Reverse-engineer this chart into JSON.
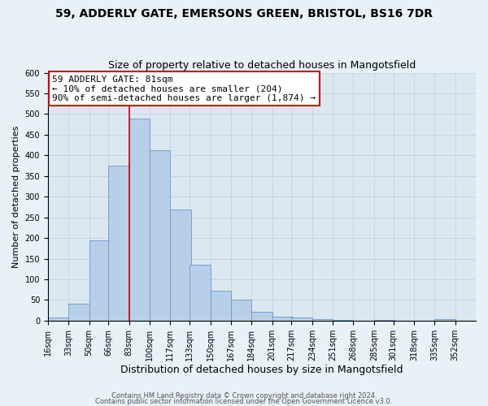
{
  "title1": "59, ADDERLY GATE, EMERSONS GREEN, BRISTOL, BS16 7DR",
  "title2": "Size of property relative to detached houses in Mangotsfield",
  "xlabel": "Distribution of detached houses by size in Mangotsfield",
  "ylabel": "Number of detached properties",
  "footer1": "Contains HM Land Registry data © Crown copyright and database right 2024.",
  "footer2": "Contains public sector information licensed under the Open Government Licence v3.0.",
  "bin_labels": [
    "16sqm",
    "33sqm",
    "50sqm",
    "66sqm",
    "83sqm",
    "100sqm",
    "117sqm",
    "133sqm",
    "150sqm",
    "167sqm",
    "184sqm",
    "201sqm",
    "217sqm",
    "234sqm",
    "251sqm",
    "268sqm",
    "285sqm",
    "301sqm",
    "318sqm",
    "335sqm",
    "352sqm"
  ],
  "bin_edges": [
    16,
    33,
    50,
    66,
    83,
    100,
    117,
    133,
    150,
    167,
    184,
    201,
    217,
    234,
    251,
    268,
    285,
    301,
    318,
    335,
    352
  ],
  "bar_heights": [
    8,
    40,
    195,
    375,
    490,
    412,
    268,
    135,
    73,
    50,
    22,
    10,
    8,
    3,
    2,
    0,
    2,
    0,
    0,
    3
  ],
  "bar_color": "#b8cfe8",
  "bar_edgecolor": "#6699cc",
  "property_line_x": 83,
  "annotation_line1": "59 ADDERLY GATE: 81sqm",
  "annotation_line2": "← 10% of detached houses are smaller (204)",
  "annotation_line3": "90% of semi-detached houses are larger (1,874) →",
  "annotation_box_facecolor": "#ffffff",
  "annotation_box_edgecolor": "#cc0000",
  "vline_color": "#cc0000",
  "ylim": [
    0,
    600
  ],
  "yticks": [
    0,
    50,
    100,
    150,
    200,
    250,
    300,
    350,
    400,
    450,
    500,
    550,
    600
  ],
  "grid_color": "#c8d4e8",
  "plot_bg_color": "#dce8f0",
  "fig_bg_color": "#e8f0f8",
  "title_fontsize": 10,
  "subtitle_fontsize": 9,
  "ylabel_fontsize": 8,
  "xlabel_fontsize": 9,
  "tick_fontsize": 7,
  "footer_fontsize": 6
}
